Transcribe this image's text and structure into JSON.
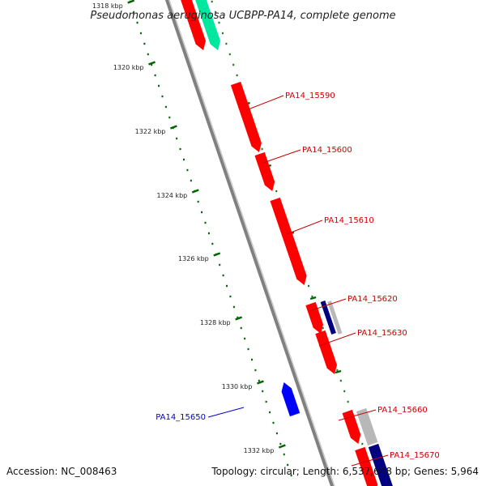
{
  "title": "Pseudomonas aeruginosa UCBPP-PA14, complete genome",
  "footer": {
    "accession": "Accession: NC_008463",
    "topology": "Topology: circular; Length: 6,537,648 bp; Genes: 5,964"
  },
  "colors": {
    "backbone": "#808080",
    "ruler": "#006400",
    "forward_gene": "#ff0000",
    "reverse_gene": "#0000ff",
    "forward_label": "#cc0000",
    "reverse_label": "#0000cc",
    "teal_feature": "#00e8a0",
    "navy_feature": "#000080",
    "gray_feature": "#b8b8b8"
  },
  "ticks": [
    "1318 kbp",
    "1320 kbp",
    "1322 kbp",
    "1324 kbp",
    "1326 kbp",
    "1328 kbp",
    "1330 kbp",
    "1332 kbp"
  ],
  "gene_labels": [
    {
      "text": "PA14_15590",
      "strand": "forward"
    },
    {
      "text": "PA14_15600",
      "strand": "forward"
    },
    {
      "text": "PA14_15610",
      "strand": "forward"
    },
    {
      "text": "PA14_15620",
      "strand": "forward"
    },
    {
      "text": "PA14_15630",
      "strand": "forward"
    },
    {
      "text": "PA14_15650",
      "strand": "reverse"
    },
    {
      "text": "PA14_15660",
      "strand": "forward"
    },
    {
      "text": "PA14_15670",
      "strand": "forward"
    }
  ]
}
